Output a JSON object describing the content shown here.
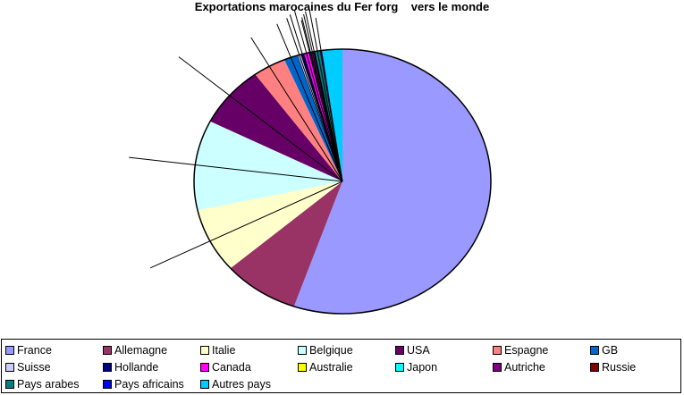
{
  "chart_data": {
    "type": "pie",
    "title": "Exportations marocaines du Fer forg    vers le monde",
    "legend_position": "bottom",
    "start_angle": "top, clockwise",
    "slices": [
      {
        "label": "France",
        "value": 55.3,
        "color": "#9999FF"
      },
      {
        "label": "Allemagne",
        "value": 8.3,
        "color": "#993366"
      },
      {
        "label": "Italie",
        "value": 7.9,
        "color": "#FFFFCC"
      },
      {
        "label": "Belgique",
        "value": 11.0,
        "color": "#CCFFFF"
      },
      {
        "label": "USA",
        "value": 7.5,
        "color": "#660066"
      },
      {
        "label": "Espagne",
        "value": 3.6,
        "color": "#FF8080"
      },
      {
        "label": "GB",
        "value": 1.5,
        "color": "#0066CC"
      },
      {
        "label": "Suisse",
        "value": 0.4,
        "color": "#CCCCFF"
      },
      {
        "label": "Hollande",
        "value": 0.3,
        "color": "#000080"
      },
      {
        "label": "Canada",
        "value": 0.6,
        "color": "#FF00FF"
      },
      {
        "label": "Australie",
        "value": 0.1,
        "color": "#FFFF00"
      },
      {
        "label": "Japon",
        "value": 0.1,
        "color": "#00FFFF"
      },
      {
        "label": "Autriche",
        "value": 0.3,
        "color": "#800080"
      },
      {
        "label": "Russie",
        "value": 0.1,
        "color": "#800000"
      },
      {
        "label": "Pays arabes",
        "value": 0.6,
        "color": "#008080"
      },
      {
        "label": "Pays africains",
        "value": 0.2,
        "color": "#0000FF"
      },
      {
        "label": "Autres pays",
        "value": 2.2,
        "color": "#00CCFF"
      }
    ]
  }
}
